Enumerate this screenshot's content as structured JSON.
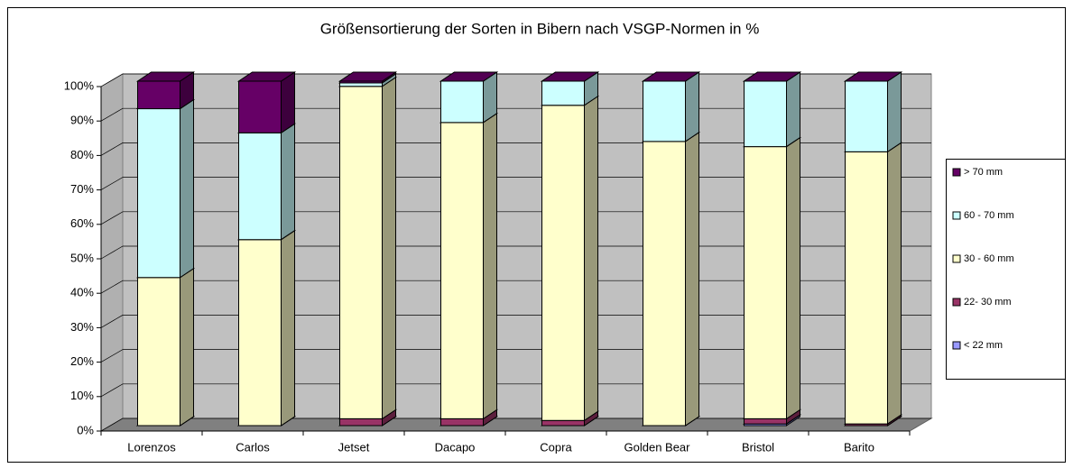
{
  "chart_data": {
    "type": "bar3d_stacked",
    "title": "Größensortierung der Sorten in Bibern nach VSGP-Normen in %",
    "categories": [
      "Lorenzos",
      "Carlos",
      "Jetset",
      "Dacapo",
      "Copra",
      "Golden Bear",
      "Bristol",
      "Barito"
    ],
    "series": [
      {
        "name": "< 22 mm",
        "color": "#9999ff",
        "values": [
          0,
          0,
          0,
          0,
          0,
          0,
          0.5,
          0
        ]
      },
      {
        "name": "22- 30 mm",
        "color": "#993366",
        "values": [
          0,
          0,
          2,
          2,
          1.5,
          0,
          1.5,
          0.5
        ]
      },
      {
        "name": "30 - 60 mm",
        "color": "#ffffcc",
        "values": [
          43,
          54,
          96.5,
          86,
          91.5,
          82.5,
          79,
          79
        ]
      },
      {
        "name": "60 - 70 mm",
        "color": "#ccffff",
        "values": [
          49,
          31,
          1,
          12,
          7,
          17.5,
          19,
          20.5
        ]
      },
      {
        "name": "> 70 mm",
        "color": "#660066",
        "values": [
          8,
          15,
          0.5,
          0,
          0,
          0,
          0,
          0
        ]
      }
    ],
    "ylim": [
      0,
      100
    ],
    "yticks": [
      {
        "value": 0,
        "label": "0%"
      },
      {
        "value": 10,
        "label": "10%"
      },
      {
        "value": 20,
        "label": "20%"
      },
      {
        "value": 30,
        "label": "30%"
      },
      {
        "value": 40,
        "label": "40%"
      },
      {
        "value": 50,
        "label": "50%"
      },
      {
        "value": 60,
        "label": "60%"
      },
      {
        "value": 70,
        "label": "70%"
      },
      {
        "value": 80,
        "label": "80%"
      },
      {
        "value": 90,
        "label": "90%"
      },
      {
        "value": 100,
        "label": "100%"
      }
    ],
    "grid": true,
    "legend": "right"
  }
}
